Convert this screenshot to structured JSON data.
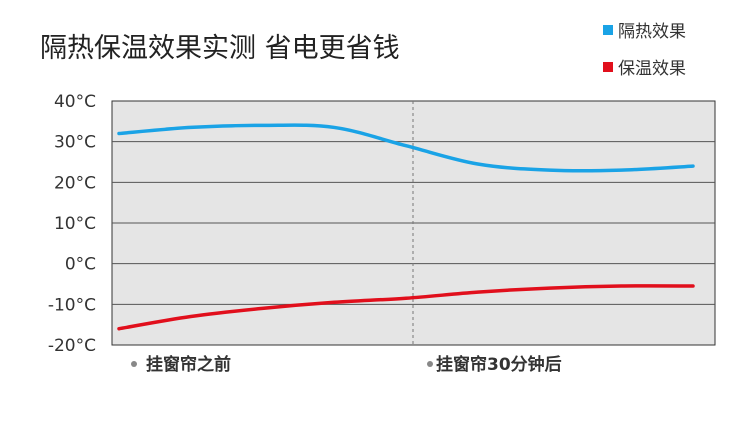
{
  "chart_data": {
    "type": "line",
    "title": "隔热保温效果实测 省电更省钱",
    "xlabel": "",
    "ylabel": "",
    "x": [
      0,
      1,
      2,
      3,
      4,
      5,
      6,
      7,
      8
    ],
    "x_range": [
      0,
      8
    ],
    "ylim": [
      -20,
      40
    ],
    "y_ticks": [
      40,
      30,
      20,
      10,
      0,
      -10,
      -20
    ],
    "y_tick_labels": [
      "40°C",
      "30°C",
      "20°C",
      "10°C",
      "0°C",
      "-10°C",
      "-20°C"
    ],
    "categories": [
      "挂窗帘之前",
      "挂窗帘30分钟后"
    ],
    "grid": true,
    "legend_position": "top-right",
    "series": [
      {
        "name": "隔热效果",
        "color": "#1aa3e6",
        "values": [
          32,
          33.5,
          34,
          33.5,
          29,
          24.5,
          23,
          23,
          24
        ]
      },
      {
        "name": "保温效果",
        "color": "#e10f1c",
        "values": [
          -16,
          -13,
          -11,
          -9.5,
          -8.5,
          -7,
          -6,
          -5.5,
          -5.5
        ]
      }
    ]
  }
}
